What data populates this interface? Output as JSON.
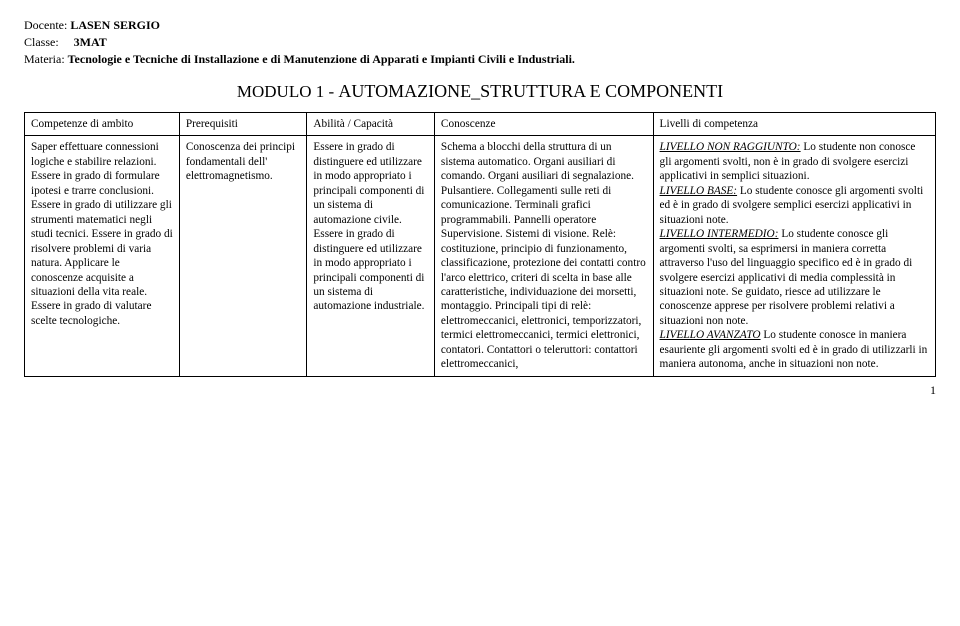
{
  "header": {
    "docente_label": "Docente:",
    "docente_value": "LASEN SERGIO",
    "classe_label": "Classe:",
    "classe_value": "3MAT",
    "materia_label": "Materia:",
    "materia_value": "Tecnologie e Tecniche di Installazione e di Manutenzione di Apparati e Impianti Civili e Industriali."
  },
  "title": {
    "prefix": "MODULO 1 - ",
    "main": "AUTOMAZIONE_STRUTTURA E COMPONENTI"
  },
  "table": {
    "headers": {
      "c1": "Competenze di ambito",
      "c2": "Prerequisiti",
      "c3": "Abilità / Capacità",
      "c4": "Conoscenze",
      "c5": "Livelli di competenza"
    },
    "row": {
      "c1": "Saper effettuare connessioni logiche e stabilire relazioni. Essere in grado di formulare ipotesi e trarre conclusioni. Essere in grado di utilizzare gli strumenti matematici negli studi tecnici. Essere in grado di risolvere problemi di varia natura. Applicare le conoscenze acquisite a situazioni della vita reale. Essere in grado di valutare scelte tecnologiche.",
      "c2": "Conoscenza dei principi fondamentali dell' elettromagnetismo.",
      "c3": "Essere in grado di distinguere ed utilizzare in modo appropriato i principali componenti di un sistema di automazione civile. Essere in grado di distinguere ed utilizzare in modo appropriato i principali componenti di un sistema di automazione industriale.",
      "c4": "Schema a blocchi della struttura di un sistema automatico. Organi ausiliari di comando. Organi ausiliari di segnalazione. Pulsantiere. Collegamenti sulle reti di comunicazione. Terminali grafici programmabili. Pannelli operatore Supervisione. Sistemi di visione. Relè: costituzione, principio di funzionamento, classificazione, protezione dei contatti contro l'arco elettrico, criteri di scelta in base alle caratteristiche, individuazione dei morsetti, montaggio. Principali tipi di relè: elettromeccanici, elettronici, temporizzatori, termici elettromeccanici, termici elettronici, contatori. Contattori o teleruttori: contattori elettromeccanici,",
      "c5": {
        "l1_label": "LIVELLO NON RAGGIUNTO:",
        "l1_text": "Lo studente non conosce gli argomenti svolti, non è in grado di svolgere esercizi applicativi in semplici situazioni.",
        "l2_label": "LIVELLO BASE:",
        "l2_text": "Lo studente conosce gli argomenti svolti ed è in grado di svolgere semplici esercizi applicativi in situazioni note.",
        "l3_label": "LIVELLO INTERMEDIO:",
        "l3_text": "Lo studente conosce gli argomenti svolti, sa esprimersi in maniera corretta attraverso l'uso del linguaggio specifico ed è in grado di svolgere esercizi applicativi di media complessità in situazioni note. Se guidato, riesce ad utilizzare le conoscenze apprese per risolvere problemi relativi a situazioni non note.",
        "l4_label": "LIVELLO AVANZATO",
        "l4_text": "Lo studente conosce in maniera esauriente gli argomenti svolti ed è in grado di utilizzarli in maniera autonoma, anche in situazioni non note."
      }
    }
  },
  "pagenum": "1"
}
